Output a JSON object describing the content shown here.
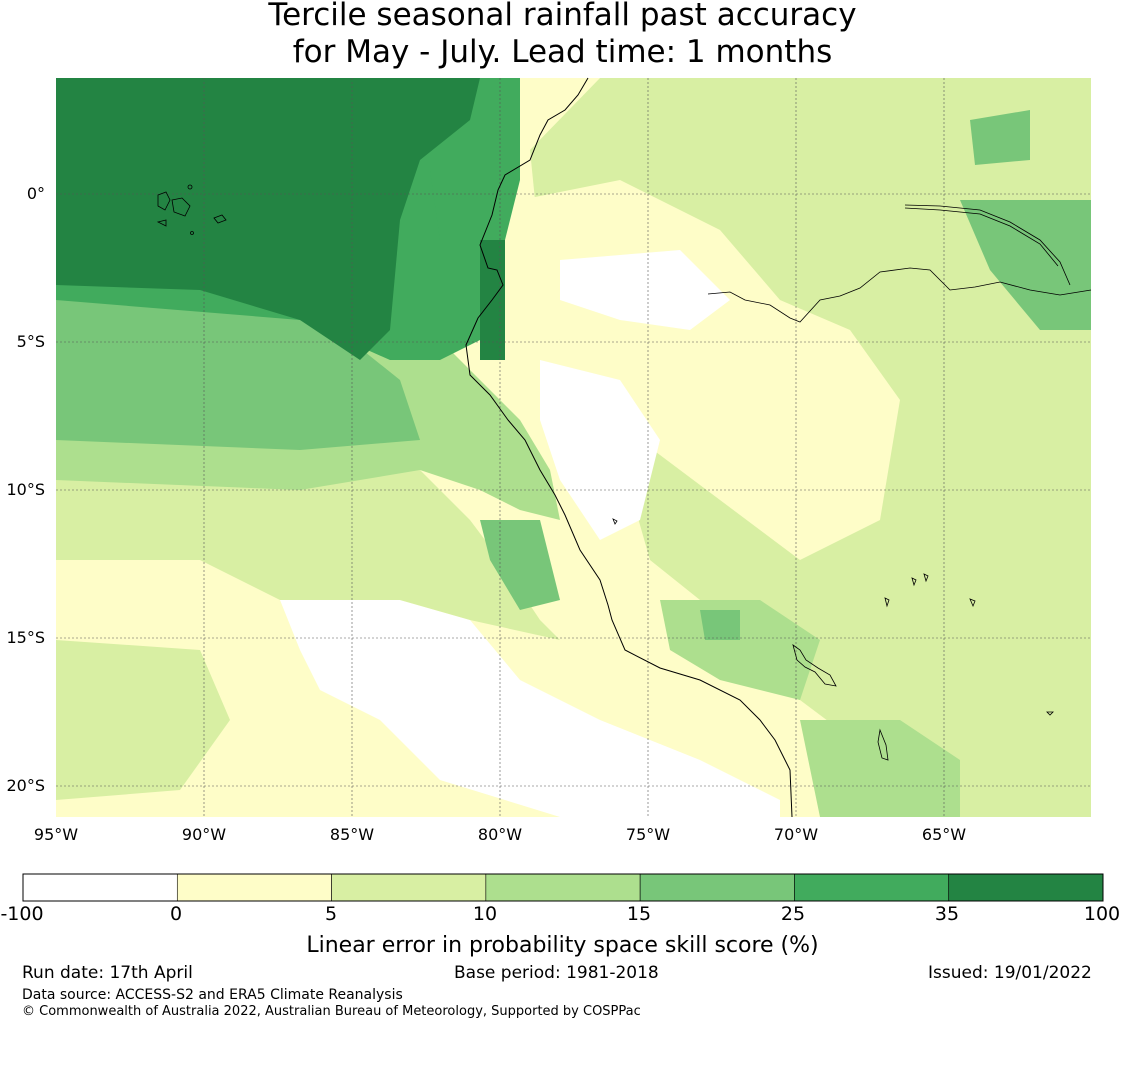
{
  "title_line1": "Tercile seasonal rainfall past accuracy",
  "title_line2": "for May - July. Lead time: 1 months",
  "lat_labels": [
    "0°",
    "5°S",
    "10°S",
    "15°S",
    "20°S"
  ],
  "lon_labels": [
    "95°W",
    "90°W",
    "85°W",
    "80°W",
    "75°W",
    "70°W",
    "65°W"
  ],
  "extent": {
    "lon_min": -95,
    "lon_max": -60,
    "lat_min": -21,
    "lat_max": 4
  },
  "colorbar": {
    "label": "Linear error in probability space skill score (%)",
    "ticks": [
      "-100",
      "0",
      "5",
      "10",
      "15",
      "25",
      "35",
      "100"
    ],
    "bins": [
      {
        "range": "-100 to 0",
        "color": "#ffffff"
      },
      {
        "range": "0 to 5",
        "color": "#fefdc8"
      },
      {
        "range": "5 to 10",
        "color": "#d8efa3"
      },
      {
        "range": "10 to 15",
        "color": "#addf8e"
      },
      {
        "range": "15 to 25",
        "color": "#78c679"
      },
      {
        "range": "25 to 35",
        "color": "#41ab5d"
      },
      {
        "range": "35 to 100",
        "color": "#238443"
      }
    ]
  },
  "footer": {
    "run_date": "Run date: 17th April",
    "base_period": "Base period: 1981-2018",
    "issued": "Issued: 19/01/2022",
    "data_source": "Data source: ACCESS-S2 and ERA5 Climate Reanalysis",
    "copyright": "© Commonwealth of Australia 2022, Australian Bureau of Meteorology, Supported by COSPPac"
  }
}
